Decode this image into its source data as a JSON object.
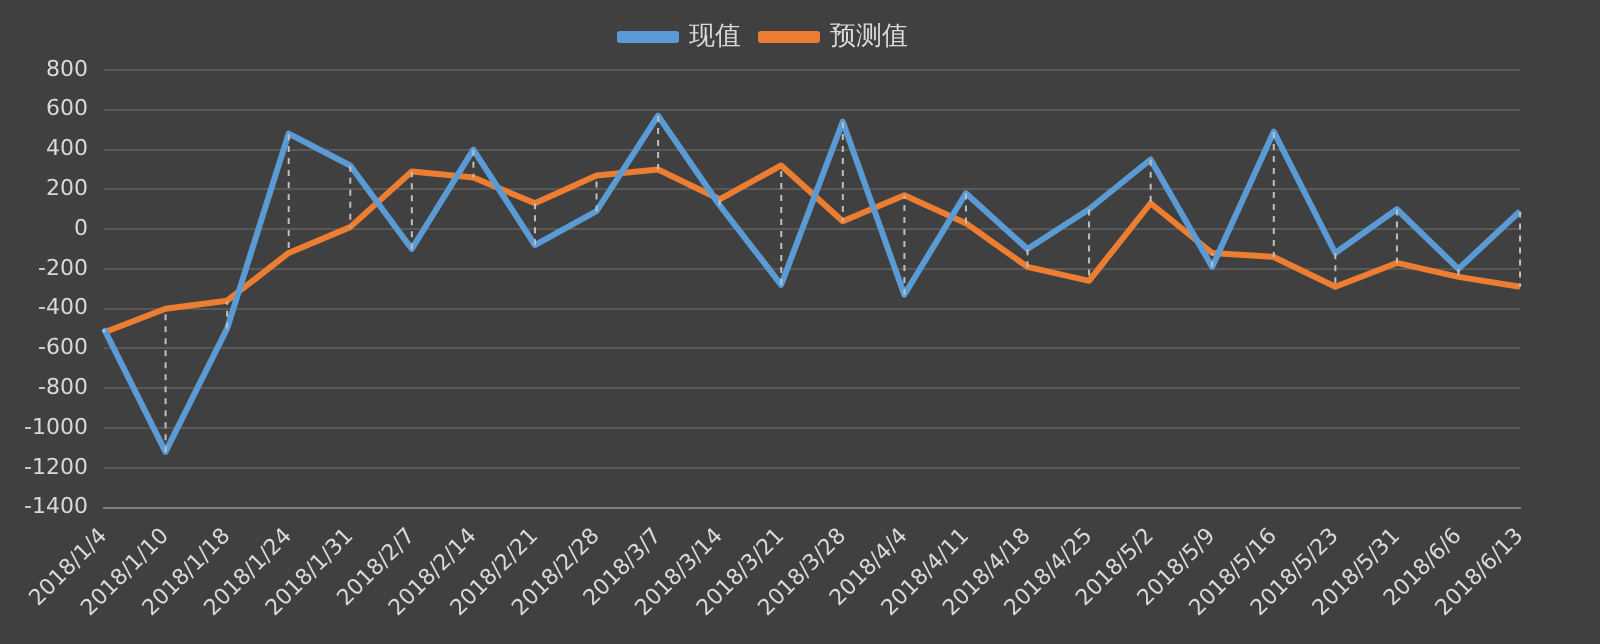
{
  "chart_data": {
    "type": "line",
    "categories": [
      "2018/1/4",
      "2018/1/10",
      "2018/1/18",
      "2018/1/24",
      "2018/1/31",
      "2018/2/7",
      "2018/2/14",
      "2018/2/21",
      "2018/2/28",
      "2018/3/7",
      "2018/3/14",
      "2018/3/21",
      "2018/3/28",
      "2018/4/4",
      "2018/4/11",
      "2018/4/18",
      "2018/4/25",
      "2018/5/2",
      "2018/5/9",
      "2018/5/16",
      "2018/5/23",
      "2018/5/31",
      "2018/6/6",
      "2018/6/13"
    ],
    "series": [
      {
        "name": "现值",
        "color": "#5b9bd5",
        "values": [
          -500,
          -1120,
          -500,
          480,
          320,
          -100,
          400,
          -80,
          90,
          570,
          120,
          -280,
          540,
          -330,
          180,
          -100,
          100,
          350,
          -190,
          490,
          -120,
          100,
          -200,
          90
        ]
      },
      {
        "name": "预测值",
        "color": "#ed7d31",
        "values": [
          -520,
          -400,
          -360,
          -120,
          10,
          290,
          260,
          130,
          270,
          300,
          150,
          320,
          40,
          170,
          30,
          -190,
          -260,
          130,
          -120,
          -140,
          -290,
          -170,
          -240,
          -290
        ]
      }
    ],
    "ylim": [
      -1400,
      800
    ],
    "yticks": [
      -1400,
      -1200,
      -1000,
      -800,
      -600,
      -400,
      -200,
      0,
      200,
      400,
      600,
      800
    ],
    "grid": "y",
    "legend": "top",
    "marker": "none",
    "line_style": "solid"
  }
}
